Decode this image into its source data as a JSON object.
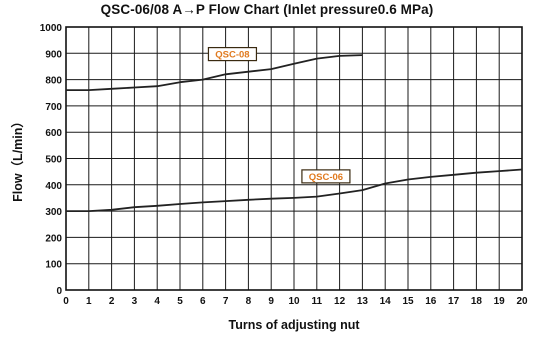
{
  "chart_data": {
    "type": "line",
    "title": "QSC-06/08 A→P Flow Chart (Inlet pressure0.6 MPa)",
    "xlabel": "Turns of adjusting nut",
    "ylabel": "Flow（L/min）",
    "xlim": [
      0,
      20
    ],
    "ylim": [
      0,
      1000
    ],
    "x_ticks": [
      "0",
      "1",
      "2",
      "3",
      "4",
      "5",
      "6",
      "7",
      "8",
      "9",
      "10",
      "11",
      "12",
      "13",
      "14",
      "15",
      "16",
      "17",
      "18",
      "19",
      "20"
    ],
    "y_ticks": [
      "0",
      "100",
      "200",
      "300",
      "400",
      "500",
      "600",
      "700",
      "800",
      "900",
      "1000"
    ],
    "grid": true,
    "series": [
      {
        "name": "QSC-08",
        "label_at": [
          7.3,
          897
        ],
        "label_color": "#e07a1f",
        "x": [
          0,
          1,
          2,
          3,
          4,
          5,
          6,
          7,
          8,
          9,
          10,
          11,
          12,
          13
        ],
        "y": [
          760,
          760,
          765,
          770,
          775,
          790,
          800,
          820,
          830,
          840,
          860,
          880,
          890,
          893
        ]
      },
      {
        "name": "QSC-06",
        "label_at": [
          11.4,
          432
        ],
        "label_color": "#e07a1f",
        "x": [
          0,
          1,
          2,
          3,
          4,
          5,
          6,
          7,
          8,
          9,
          10,
          11,
          12,
          13,
          14,
          15,
          16,
          17,
          18,
          19,
          20
        ],
        "y": [
          300,
          300,
          305,
          315,
          320,
          327,
          333,
          338,
          343,
          347,
          350,
          355,
          367,
          380,
          405,
          420,
          430,
          438,
          446,
          452,
          458
        ]
      }
    ],
    "line_color": "#222222",
    "grid_color": "#1a1a1a"
  }
}
